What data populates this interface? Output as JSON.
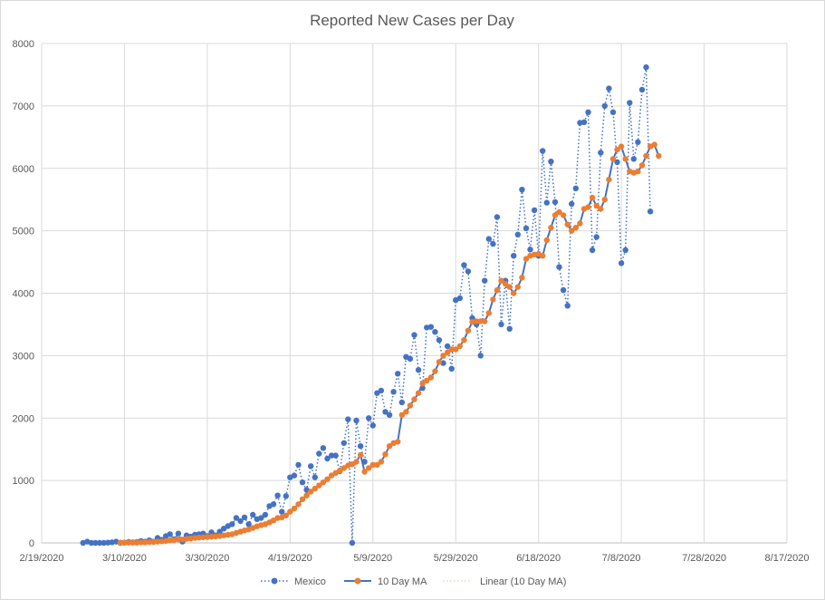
{
  "chart_data": {
    "type": "line",
    "title": "Reported New Cases per Day",
    "xlabel": "",
    "ylabel": "",
    "ylim": [
      0,
      8000
    ],
    "yticks": [
      0,
      1000,
      2000,
      3000,
      4000,
      5000,
      6000,
      7000,
      8000
    ],
    "xlim_days": [
      0,
      180
    ],
    "xticks": [
      {
        "day": 0,
        "label": "2/19/2020"
      },
      {
        "day": 20,
        "label": "3/10/2020"
      },
      {
        "day": 40,
        "label": "3/30/2020"
      },
      {
        "day": 60,
        "label": "4/19/2020"
      },
      {
        "day": 80,
        "label": "5/9/2020"
      },
      {
        "day": 100,
        "label": "5/29/2020"
      },
      {
        "day": 120,
        "label": "6/18/2020"
      },
      {
        "day": 140,
        "label": "7/8/2020"
      },
      {
        "day": 160,
        "label": "7/28/2020"
      },
      {
        "day": 180,
        "label": "8/17/2020"
      }
    ],
    "start_day": 10,
    "legend_position": "bottom",
    "series": [
      {
        "name": "Mexico",
        "color": "#4472c4",
        "line_style": "dotted",
        "values": [
          0,
          20,
          0,
          0,
          0,
          0,
          5,
          10,
          20,
          0,
          5,
          15,
          10,
          15,
          30,
          20,
          40,
          20,
          80,
          50,
          110,
          140,
          60,
          150,
          20,
          120,
          100,
          130,
          140,
          150,
          110,
          170,
          120,
          180,
          230,
          270,
          300,
          400,
          350,
          410,
          300,
          450,
          380,
          400,
          450,
          590,
          620,
          760,
          500,
          750,
          1050,
          1080,
          1250,
          970,
          850,
          1230,
          1050,
          1430,
          1520,
          1350,
          1400,
          1400,
          1150,
          1600,
          1980,
          0,
          1960,
          1550,
          1300,
          2000,
          1880,
          2400,
          2440,
          2100,
          2050,
          2420,
          2710,
          2250,
          2980,
          2950,
          3330,
          2770,
          2480,
          3450,
          3460,
          3380,
          3250,
          2880,
          3150,
          2790,
          3890,
          3920,
          4450,
          4350,
          3600,
          3500,
          3000,
          4200,
          4870,
          4790,
          5220,
          3500,
          4200,
          3430,
          4600,
          4940,
          5660,
          5040,
          4700,
          5330,
          4600,
          6280,
          5450,
          6110,
          5460,
          4420,
          4050,
          3800,
          5430,
          5680,
          6730,
          6740,
          6900,
          4690,
          4900,
          6250,
          7000,
          7280,
          6900,
          6100,
          4480,
          4690,
          7050,
          6150,
          6420,
          7260,
          7620,
          5310
        ]
      },
      {
        "name": "10 Day MA",
        "color": "#ed7d31",
        "line_color": "#4472c4",
        "line_style": "solid",
        "values": [
          null,
          null,
          null,
          null,
          null,
          null,
          null,
          null,
          null,
          5,
          5,
          5,
          5,
          5,
          10,
          10,
          15,
          15,
          20,
          25,
          30,
          40,
          45,
          55,
          55,
          65,
          70,
          80,
          85,
          90,
          95,
          100,
          105,
          110,
          120,
          130,
          140,
          160,
          180,
          200,
          215,
          240,
          265,
          285,
          300,
          330,
          360,
          400,
          410,
          440,
          500,
          550,
          620,
          700,
          760,
          820,
          870,
          920,
          970,
          1020,
          1080,
          1120,
          1160,
          1200,
          1240,
          1260,
          1300,
          1410,
          1140,
          1200,
          1250,
          1250,
          1300,
          1420,
          1550,
          1600,
          1620,
          2050,
          2100,
          2200,
          2300,
          2400,
          2550,
          2600,
          2650,
          2750,
          2900,
          3000,
          3050,
          3100,
          3100,
          3150,
          3250,
          3400,
          3540,
          3550,
          3550,
          3550,
          3680,
          3900,
          4050,
          4200,
          4150,
          4100,
          4000,
          4100,
          4250,
          4550,
          4600,
          4620,
          4630,
          4600,
          4850,
          5050,
          5250,
          5300,
          5250,
          5100,
          5000,
          5050,
          5120,
          5350,
          5380,
          5530,
          5400,
          5350,
          5500,
          5820,
          6150,
          6300,
          6350,
          6150,
          5950,
          5930,
          5950,
          6050,
          6200,
          6350,
          6380,
          6200
        ]
      },
      {
        "name": "Linear (10 Day MA)",
        "color": "#ed7d31",
        "line_style": "dotted",
        "values": []
      }
    ]
  }
}
